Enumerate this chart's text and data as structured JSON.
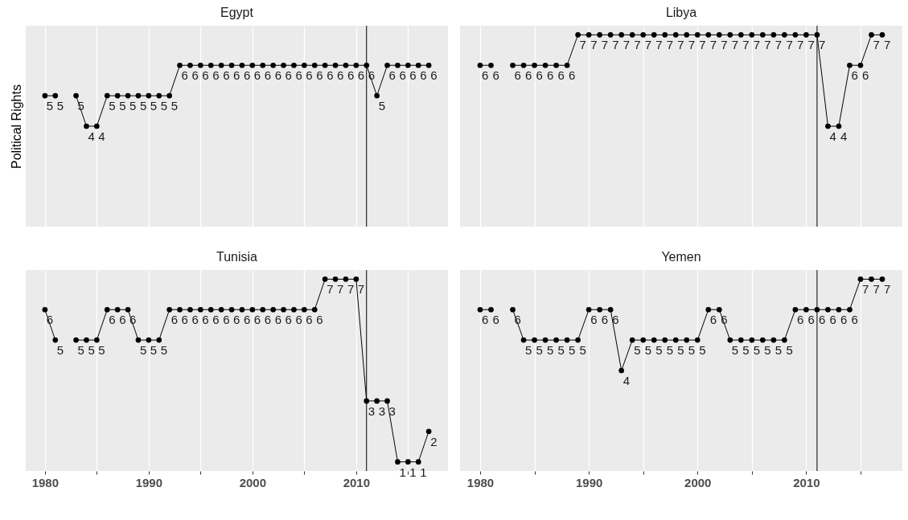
{
  "chart_data": [
    {
      "type": "line",
      "title": "Egypt",
      "ylabel": "Political Rights",
      "x": [
        1980,
        1981,
        1982,
        1983,
        1984,
        1985,
        1986,
        1987,
        1988,
        1989,
        1990,
        1991,
        1992,
        1993,
        1994,
        1995,
        1996,
        1997,
        1998,
        1999,
        2000,
        2001,
        2002,
        2003,
        2004,
        2005,
        2006,
        2007,
        2008,
        2009,
        2010,
        2011,
        2012,
        2013,
        2014,
        2015,
        2016,
        2017
      ],
      "series": [
        {
          "color": "#000000",
          "values": [
            5,
            5,
            null,
            5,
            4,
            4,
            5,
            5,
            5,
            5,
            5,
            5,
            5,
            6,
            6,
            6,
            6,
            6,
            6,
            6,
            6,
            6,
            6,
            6,
            6,
            6,
            6,
            6,
            6,
            6,
            6,
            6,
            5,
            6,
            6,
            6,
            6,
            6
          ]
        }
      ],
      "xlim": [
        1978.15,
        2018.85
      ],
      "xticks": [
        1980,
        {
          "value": 1985,
          "label": null
        },
        1990,
        {
          "value": 1995,
          "label": null
        },
        2000,
        {
          "value": 2005,
          "label": null
        },
        2010,
        {
          "value": 2015,
          "label": null
        }
      ],
      "ylim": [
        0.7,
        7.3
      ],
      "ref_lines": [
        {
          "axis": "x",
          "value": 2011,
          "color": "#000000"
        }
      ],
      "grid": "x",
      "marker": "circle",
      "line_style": "solid",
      "data_labels": true,
      "tick_labels": false
    },
    {
      "type": "line",
      "title": "Libya",
      "x": [
        1980,
        1981,
        1982,
        1983,
        1984,
        1985,
        1986,
        1987,
        1988,
        1989,
        1990,
        1991,
        1992,
        1993,
        1994,
        1995,
        1996,
        1997,
        1998,
        1999,
        2000,
        2001,
        2002,
        2003,
        2004,
        2005,
        2006,
        2007,
        2008,
        2009,
        2010,
        2011,
        2012,
        2013,
        2014,
        2015,
        2016,
        2017
      ],
      "series": [
        {
          "color": "#000000",
          "values": [
            6,
            6,
            null,
            6,
            6,
            6,
            6,
            6,
            6,
            7,
            7,
            7,
            7,
            7,
            7,
            7,
            7,
            7,
            7,
            7,
            7,
            7,
            7,
            7,
            7,
            7,
            7,
            7,
            7,
            7,
            7,
            7,
            4,
            4,
            6,
            6,
            7,
            7
          ]
        }
      ],
      "xlim": [
        1978.15,
        2018.85
      ],
      "xticks": [
        1980,
        {
          "value": 1985,
          "label": null
        },
        1990,
        {
          "value": 1995,
          "label": null
        },
        2000,
        {
          "value": 2005,
          "label": null
        },
        2010,
        {
          "value": 2015,
          "label": null
        }
      ],
      "ylim": [
        0.7,
        7.3
      ],
      "ref_lines": [
        {
          "axis": "x",
          "value": 2011,
          "color": "#000000"
        }
      ],
      "grid": "x",
      "marker": "circle",
      "line_style": "solid",
      "data_labels": true,
      "tick_labels": false
    },
    {
      "type": "line",
      "title": "Tunisia",
      "x": [
        1980,
        1981,
        1982,
        1983,
        1984,
        1985,
        1986,
        1987,
        1988,
        1989,
        1990,
        1991,
        1992,
        1993,
        1994,
        1995,
        1996,
        1997,
        1998,
        1999,
        2000,
        2001,
        2002,
        2003,
        2004,
        2005,
        2006,
        2007,
        2008,
        2009,
        2010,
        2011,
        2012,
        2013,
        2014,
        2015,
        2016,
        2017
      ],
      "series": [
        {
          "color": "#000000",
          "values": [
            6,
            5,
            null,
            5,
            5,
            5,
            6,
            6,
            6,
            5,
            5,
            5,
            6,
            6,
            6,
            6,
            6,
            6,
            6,
            6,
            6,
            6,
            6,
            6,
            6,
            6,
            6,
            7,
            7,
            7,
            7,
            3,
            3,
            3,
            1,
            1,
            1,
            2
          ]
        }
      ],
      "xlim": [
        1978.15,
        2018.85
      ],
      "xticks": [
        1980,
        {
          "value": 1985,
          "label": null
        },
        1990,
        {
          "value": 1995,
          "label": null
        },
        2000,
        {
          "value": 2005,
          "label": null
        },
        2010,
        {
          "value": 2015,
          "label": null
        }
      ],
      "ylim": [
        0.7,
        7.3
      ],
      "ref_lines": [
        {
          "axis": "x",
          "value": 2011,
          "color": "#000000"
        }
      ],
      "grid": "x",
      "marker": "circle",
      "line_style": "solid",
      "data_labels": true,
      "tick_labels": "x"
    },
    {
      "type": "line",
      "title": "Yemen",
      "x": [
        1980,
        1981,
        1982,
        1983,
        1984,
        1985,
        1986,
        1987,
        1988,
        1989,
        1990,
        1991,
        1992,
        1993,
        1994,
        1995,
        1996,
        1997,
        1998,
        1999,
        2000,
        2001,
        2002,
        2003,
        2004,
        2005,
        2006,
        2007,
        2008,
        2009,
        2010,
        2011,
        2012,
        2013,
        2014,
        2015,
        2016,
        2017
      ],
      "series": [
        {
          "color": "#000000",
          "values": [
            6,
            6,
            null,
            6,
            5,
            5,
            5,
            5,
            5,
            5,
            6,
            6,
            6,
            4,
            5,
            5,
            5,
            5,
            5,
            5,
            5,
            6,
            6,
            5,
            5,
            5,
            5,
            5,
            5,
            6,
            6,
            6,
            6,
            6,
            6,
            7,
            7,
            7
          ]
        }
      ],
      "xlim": [
        1978.15,
        2018.85
      ],
      "xticks": [
        1980,
        {
          "value": 1985,
          "label": null
        },
        1990,
        {
          "value": 1995,
          "label": null
        },
        2000,
        {
          "value": 2005,
          "label": null
        },
        2010,
        {
          "value": 2015,
          "label": null
        }
      ],
      "ylim": [
        0.7,
        7.3
      ],
      "ref_lines": [
        {
          "axis": "x",
          "value": 2011,
          "color": "#000000"
        }
      ],
      "grid": "x",
      "marker": "circle",
      "line_style": "solid",
      "data_labels": true,
      "tick_labels": "x"
    }
  ]
}
